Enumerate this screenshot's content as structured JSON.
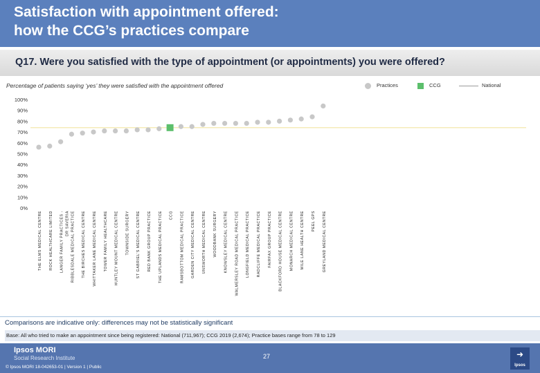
{
  "header": {
    "title": "Satisfaction with appointment offered:\nhow the CCG’s practices compare"
  },
  "question": "Q17. Were you satisfied with the type of appointment (or appointments) you were offered?",
  "subtitle": "Percentage of patients saying ‘yes’ they were satisfied with the appointment offered",
  "legend": {
    "practices": "Practices",
    "ccg": "CCG",
    "national": "National"
  },
  "colors": {
    "header": "#5b80bd",
    "practice_point": "#c8c8c8",
    "ccg_point": "#5cbf6c",
    "national_line": "#f2e5a0",
    "footer": "#5575af"
  },
  "chart_data": {
    "type": "scatter",
    "ylim": [
      0,
      100
    ],
    "y_ticks": [
      "0%",
      "10%",
      "20%",
      "30%",
      "40%",
      "50%",
      "60%",
      "70%",
      "80%",
      "90%",
      "100%"
    ],
    "national_value": 74,
    "categories": [
      "THE ELMS MEDICAL CENTRE",
      "ROCK HEALTHCARE LIMITED",
      "LANGER FAMILY PRACTICES - DR SAVERIA",
      "RIBBLESDALE MEDICAL PRACTICE",
      "THE BIRCHES MEDICAL CENTRE",
      "WHITTAKER LANE MEDICAL CENTRE",
      "TOWER FAMILY HEALTHCARE",
      "HUNTLEY MOUNT MEDICAL CENTRE",
      "TOWNSIDE SURGERY",
      "ST GABRIEL'S MEDICAL CENTRE",
      "RED BANK GROUP PRACTICE",
      "THE UPLANDS MEDICAL PRACTICE",
      "CCG",
      "RAMSBOTTOM MEDICAL PRACTICE",
      "GARDEN CITY MEDICAL CENTRE",
      "UNSWORTH MEDICAL CENTRE",
      "WOODBANK SURGERY",
      "KNOWSLEY MEDICAL CENTRE",
      "WALMERSLEY ROAD MEDICAL PRACTICE",
      "LONGFIELD MEDICAL PRACTICE",
      "RADCLIFFE MEDICAL PRACTICE",
      "FAIRFAX GROUP PRACTICE",
      "BLACKFORD HOUSE MEDICAL CENTRE",
      "MONARCH MEDICAL CENTRE",
      "MILE LANE HEALTH CENTRE",
      "PEEL GPS",
      "GREYLAND MEDICAL CENTRE"
    ],
    "values": [
      56,
      57,
      61,
      68,
      69,
      70,
      71,
      71,
      71,
      72,
      72,
      73,
      74,
      75,
      75,
      77,
      78,
      78,
      78,
      78,
      79,
      79,
      80,
      81,
      82,
      84,
      94
    ],
    "ccg_index": 12
  },
  "footer": {
    "comparisons": "Comparisons are indicative only: differences may not be statistically significant",
    "base": "Base: All who tried to make an appointment since being registered: National (711,967); CCG 2019 (2,674); Practice bases range from 78 to 129",
    "brand": "Ipsos MORI",
    "brand_sub": "Social Research Institute",
    "copyright": "© Ipsos MORI      18-042653-01 | Version 1 | Public",
    "page": "27",
    "logo_text": "Ipsos"
  }
}
